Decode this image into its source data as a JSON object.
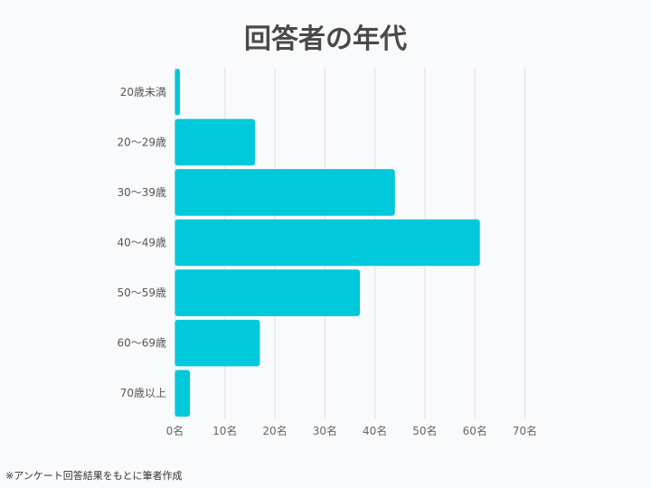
{
  "chart_data": {
    "type": "bar",
    "orientation": "horizontal",
    "title": "回答者の年代",
    "categories": [
      "20歳未満",
      "20〜29歳",
      "30〜39歳",
      "40〜49歳",
      "50〜59歳",
      "60〜69歳",
      "70歳以上"
    ],
    "values": [
      1,
      16,
      44,
      61,
      37,
      17,
      3
    ],
    "xlim": [
      0,
      70
    ],
    "xticks": [
      "0名",
      "10名",
      "20名",
      "30名",
      "40名",
      "50名",
      "60名",
      "70名"
    ],
    "grid": true,
    "bar_color": "#00c9db",
    "note": "※アンケート回答結果をもとに筆者作成"
  }
}
